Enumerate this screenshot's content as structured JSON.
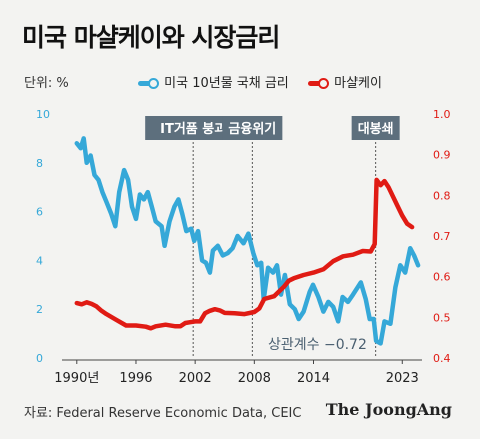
{
  "title": "미국 마샬케이와 시장금리",
  "unit_label": "단위: %",
  "source": "자료: Federal Reserve Economic Data, CEIC",
  "brand": "The JoongAng",
  "colors": {
    "blue": "#35a8d8",
    "red": "#e01b14",
    "label_bg": "#5d6f7d"
  },
  "chart_data": {
    "type": "line",
    "x_ticks": [
      "1990년",
      "1996",
      "2002",
      "2008",
      "2014",
      "2023"
    ],
    "x_tick_values": [
      1990,
      1996,
      2002,
      2008,
      2014,
      2023
    ],
    "xlim": [
      1988.5,
      2025
    ],
    "y_left": {
      "ticks": [
        "0",
        "2",
        "4",
        "6",
        "8",
        "10"
      ],
      "ylim": [
        0,
        10
      ]
    },
    "y_right": {
      "ticks": [
        "0.4",
        "0.5",
        "0.6",
        "0.7",
        "0.8",
        "0.9",
        "1.0"
      ],
      "ylim": [
        0.4,
        1.0
      ]
    },
    "series": [
      {
        "name": "미국 10년물 국채 금리",
        "axis": "left",
        "color": "#35a8d8",
        "points": [
          [
            1990.0,
            8.8
          ],
          [
            1990.4,
            8.6
          ],
          [
            1990.7,
            9.0
          ],
          [
            1991.0,
            8.0
          ],
          [
            1991.4,
            8.3
          ],
          [
            1991.8,
            7.5
          ],
          [
            1992.2,
            7.3
          ],
          [
            1992.6,
            6.8
          ],
          [
            1993.0,
            6.4
          ],
          [
            1993.5,
            5.9
          ],
          [
            1993.9,
            5.4
          ],
          [
            1994.3,
            6.8
          ],
          [
            1994.8,
            7.7
          ],
          [
            1995.2,
            7.3
          ],
          [
            1995.6,
            6.2
          ],
          [
            1996.0,
            5.7
          ],
          [
            1996.4,
            6.7
          ],
          [
            1996.8,
            6.5
          ],
          [
            1997.2,
            6.8
          ],
          [
            1997.6,
            6.2
          ],
          [
            1998.0,
            5.6
          ],
          [
            1998.6,
            5.4
          ],
          [
            1998.9,
            4.6
          ],
          [
            1999.4,
            5.6
          ],
          [
            1999.9,
            6.2
          ],
          [
            2000.3,
            6.5
          ],
          [
            2000.7,
            5.9
          ],
          [
            2001.1,
            5.2
          ],
          [
            2001.6,
            5.3
          ],
          [
            2001.9,
            4.8
          ],
          [
            2002.3,
            5.2
          ],
          [
            2002.7,
            4.0
          ],
          [
            2003.1,
            3.9
          ],
          [
            2003.5,
            3.5
          ],
          [
            2003.8,
            4.4
          ],
          [
            2004.3,
            4.6
          ],
          [
            2004.8,
            4.2
          ],
          [
            2005.3,
            4.3
          ],
          [
            2005.8,
            4.5
          ],
          [
            2006.3,
            5.0
          ],
          [
            2006.9,
            4.7
          ],
          [
            2007.4,
            5.1
          ],
          [
            2007.9,
            4.3
          ],
          [
            2008.3,
            3.8
          ],
          [
            2008.7,
            3.9
          ],
          [
            2008.95,
            2.4
          ],
          [
            2009.4,
            3.7
          ],
          [
            2009.9,
            3.5
          ],
          [
            2010.3,
            3.8
          ],
          [
            2010.7,
            2.6
          ],
          [
            2011.1,
            3.4
          ],
          [
            2011.6,
            2.2
          ],
          [
            2012.1,
            2.0
          ],
          [
            2012.5,
            1.6
          ],
          [
            2013.0,
            1.9
          ],
          [
            2013.6,
            2.7
          ],
          [
            2013.95,
            3.0
          ],
          [
            2014.5,
            2.5
          ],
          [
            2015.0,
            1.9
          ],
          [
            2015.5,
            2.3
          ],
          [
            2016.0,
            2.1
          ],
          [
            2016.5,
            1.5
          ],
          [
            2016.95,
            2.5
          ],
          [
            2017.5,
            2.3
          ],
          [
            2018.0,
            2.6
          ],
          [
            2018.8,
            3.1
          ],
          [
            2019.3,
            2.4
          ],
          [
            2019.7,
            1.6
          ],
          [
            2020.1,
            1.6
          ],
          [
            2020.35,
            0.7
          ],
          [
            2020.8,
            0.6
          ],
          [
            2021.2,
            1.5
          ],
          [
            2021.8,
            1.4
          ],
          [
            2022.3,
            2.9
          ],
          [
            2022.8,
            3.8
          ],
          [
            2023.3,
            3.5
          ],
          [
            2023.8,
            4.5
          ],
          [
            2024.2,
            4.2
          ],
          [
            2024.6,
            3.8
          ]
        ]
      },
      {
        "name": "마샬케이",
        "axis": "right",
        "color": "#e01b14",
        "points": [
          [
            1990.0,
            0.535
          ],
          [
            1990.5,
            0.532
          ],
          [
            1991.0,
            0.537
          ],
          [
            1991.5,
            0.533
          ],
          [
            1992.0,
            0.527
          ],
          [
            1992.5,
            0.516
          ],
          [
            1993.0,
            0.508
          ],
          [
            1994.0,
            0.494
          ],
          [
            1995.0,
            0.48
          ],
          [
            1996.0,
            0.48
          ],
          [
            1997.0,
            0.477
          ],
          [
            1997.5,
            0.473
          ],
          [
            1998.0,
            0.478
          ],
          [
            1999.0,
            0.482
          ],
          [
            2000.0,
            0.478
          ],
          [
            2000.5,
            0.478
          ],
          [
            2001.0,
            0.486
          ],
          [
            2001.5,
            0.488
          ],
          [
            2002.0,
            0.49
          ],
          [
            2002.5,
            0.49
          ],
          [
            2003.0,
            0.51
          ],
          [
            2003.5,
            0.516
          ],
          [
            2004.0,
            0.52
          ],
          [
            2004.5,
            0.517
          ],
          [
            2005.0,
            0.511
          ],
          [
            2006.0,
            0.51
          ],
          [
            2007.0,
            0.508
          ],
          [
            2008.0,
            0.513
          ],
          [
            2008.5,
            0.522
          ],
          [
            2009.0,
            0.545
          ],
          [
            2010.0,
            0.552
          ],
          [
            2011.0,
            0.575
          ],
          [
            2011.5,
            0.59
          ],
          [
            2012.0,
            0.596
          ],
          [
            2013.0,
            0.604
          ],
          [
            2014.0,
            0.61
          ],
          [
            2015.0,
            0.618
          ],
          [
            2016.0,
            0.638
          ],
          [
            2017.0,
            0.65
          ],
          [
            2018.0,
            0.654
          ],
          [
            2019.0,
            0.663
          ],
          [
            2019.8,
            0.662
          ],
          [
            2020.2,
            0.68
          ],
          [
            2020.4,
            0.838
          ],
          [
            2020.8,
            0.825
          ],
          [
            2021.2,
            0.835
          ],
          [
            2021.6,
            0.82
          ],
          [
            2022.0,
            0.8
          ],
          [
            2022.5,
            0.775
          ],
          [
            2023.0,
            0.75
          ],
          [
            2023.5,
            0.73
          ],
          [
            2024.0,
            0.722
          ]
        ]
      }
    ],
    "events": [
      {
        "label": "IT거품 붕괴",
        "x": 2001.8
      },
      {
        "label": "금융위기",
        "x": 2007.8
      },
      {
        "label": "대봉쇄",
        "x": 2020.3
      }
    ],
    "annotation": "상관계수 −0.72"
  }
}
